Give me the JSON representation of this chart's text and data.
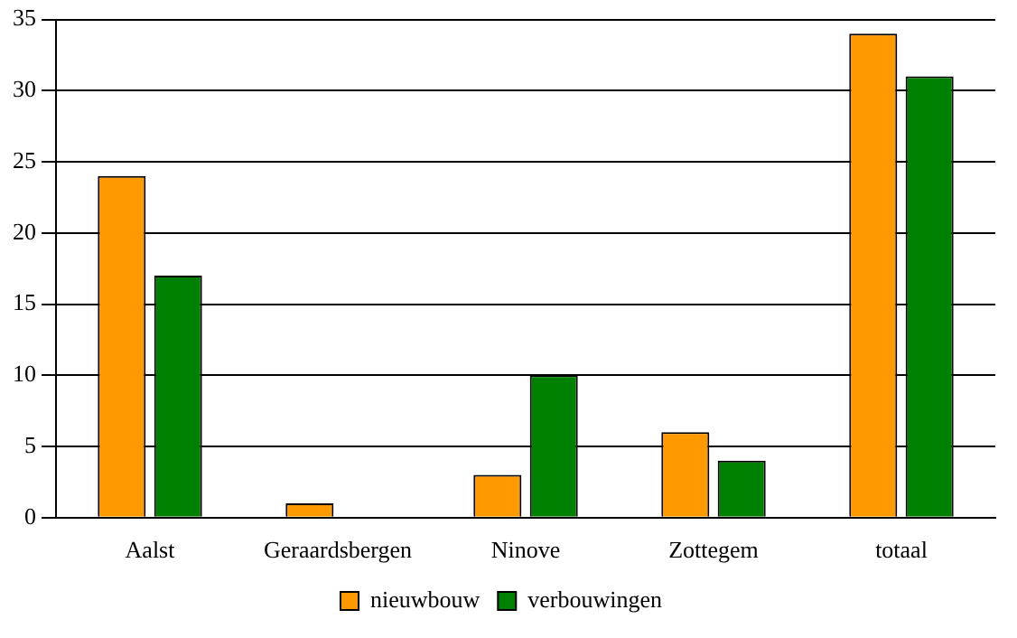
{
  "chart_data": {
    "type": "bar",
    "categories": [
      "Aalst",
      "Geraardsbergen",
      "Ninove",
      "Zottegem",
      "totaal"
    ],
    "series": [
      {
        "name": "nieuwbouw",
        "color": "#ff9900",
        "values": [
          24,
          1,
          3,
          6,
          34
        ]
      },
      {
        "name": "verbouwingen",
        "color": "#008000",
        "values": [
          17,
          0,
          10,
          4,
          31
        ]
      }
    ],
    "ylim": [
      0,
      35
    ],
    "yticks": [
      0,
      5,
      10,
      15,
      20,
      25,
      30,
      35
    ],
    "grid": "y",
    "legend": "bottom"
  }
}
